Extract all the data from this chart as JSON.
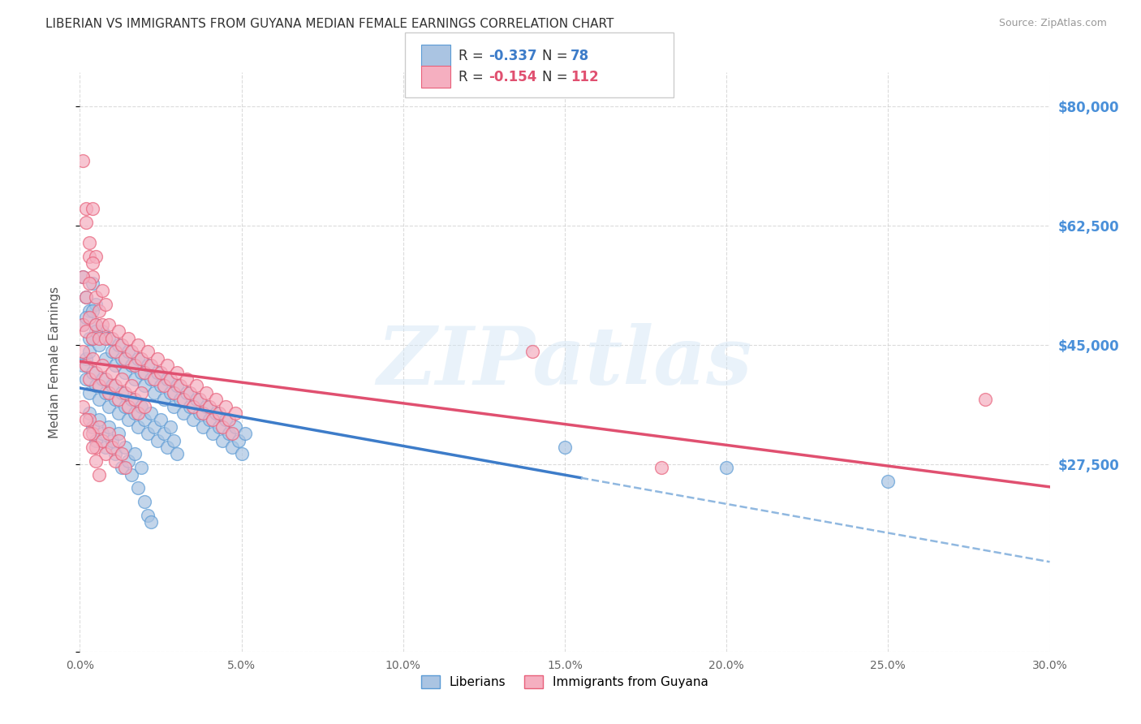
{
  "title": "LIBERIAN VS IMMIGRANTS FROM GUYANA MEDIAN FEMALE EARNINGS CORRELATION CHART",
  "source": "Source: ZipAtlas.com",
  "ylabel": "Median Female Earnings",
  "yticks": [
    0,
    27500,
    45000,
    62500,
    80000
  ],
  "ytick_labels": [
    "",
    "$27,500",
    "$45,000",
    "$62,500",
    "$80,000"
  ],
  "xlim": [
    0.0,
    0.3
  ],
  "ylim": [
    17000,
    85000
  ],
  "watermark": "ZIPatlas",
  "liberian_color": "#aac4e2",
  "guyana_color": "#f5afc0",
  "liberian_edge_color": "#5b9bd5",
  "guyana_edge_color": "#e8607a",
  "liberian_line_color": "#3d7cc9",
  "guyana_line_color": "#e05070",
  "liberian_dashed_color": "#90b8e0",
  "background_color": "#ffffff",
  "grid_color": "#cccccc",
  "title_color": "#333333",
  "axis_label_color": "#555555",
  "right_tick_color": "#4a90d9",
  "liberian_scatter": [
    [
      0.002,
      43000
    ],
    [
      0.003,
      44000
    ],
    [
      0.004,
      46000
    ],
    [
      0.005,
      48000
    ],
    [
      0.006,
      45000
    ],
    [
      0.007,
      47000
    ],
    [
      0.008,
      43000
    ],
    [
      0.009,
      46000
    ],
    [
      0.01,
      44000
    ],
    [
      0.011,
      42000
    ],
    [
      0.012,
      45000
    ],
    [
      0.013,
      43000
    ],
    [
      0.014,
      41000
    ],
    [
      0.015,
      44000
    ],
    [
      0.016,
      42000
    ],
    [
      0.017,
      40000
    ],
    [
      0.018,
      43000
    ],
    [
      0.019,
      41000
    ],
    [
      0.02,
      39000
    ],
    [
      0.021,
      42000
    ],
    [
      0.022,
      40000
    ],
    [
      0.023,
      38000
    ],
    [
      0.024,
      41000
    ],
    [
      0.025,
      39000
    ],
    [
      0.026,
      37000
    ],
    [
      0.027,
      40000
    ],
    [
      0.028,
      38000
    ],
    [
      0.029,
      36000
    ],
    [
      0.03,
      39000
    ],
    [
      0.031,
      37000
    ],
    [
      0.032,
      35000
    ],
    [
      0.033,
      38000
    ],
    [
      0.034,
      36000
    ],
    [
      0.035,
      34000
    ],
    [
      0.036,
      37000
    ],
    [
      0.037,
      35000
    ],
    [
      0.038,
      33000
    ],
    [
      0.039,
      36000
    ],
    [
      0.04,
      34000
    ],
    [
      0.041,
      32000
    ],
    [
      0.042,
      35000
    ],
    [
      0.043,
      33000
    ],
    [
      0.044,
      31000
    ],
    [
      0.045,
      34000
    ],
    [
      0.046,
      32000
    ],
    [
      0.047,
      30000
    ],
    [
      0.048,
      33000
    ],
    [
      0.049,
      31000
    ],
    [
      0.05,
      29000
    ],
    [
      0.051,
      32000
    ],
    [
      0.001,
      55000
    ],
    [
      0.002,
      52000
    ],
    [
      0.003,
      50000
    ],
    [
      0.004,
      54000
    ],
    [
      0.005,
      51000
    ],
    [
      0.001,
      48000
    ],
    [
      0.002,
      49000
    ],
    [
      0.003,
      46000
    ],
    [
      0.004,
      50000
    ],
    [
      0.005,
      47000
    ],
    [
      0.001,
      42000
    ],
    [
      0.002,
      40000
    ],
    [
      0.003,
      38000
    ],
    [
      0.004,
      41000
    ],
    [
      0.005,
      39000
    ],
    [
      0.006,
      37000
    ],
    [
      0.007,
      40000
    ],
    [
      0.008,
      38000
    ],
    [
      0.009,
      36000
    ],
    [
      0.01,
      39000
    ],
    [
      0.011,
      37000
    ],
    [
      0.012,
      35000
    ],
    [
      0.013,
      38000
    ],
    [
      0.014,
      36000
    ],
    [
      0.015,
      34000
    ],
    [
      0.016,
      37000
    ],
    [
      0.017,
      35000
    ],
    [
      0.018,
      33000
    ],
    [
      0.019,
      36000
    ],
    [
      0.02,
      34000
    ],
    [
      0.021,
      32000
    ],
    [
      0.022,
      35000
    ],
    [
      0.023,
      33000
    ],
    [
      0.024,
      31000
    ],
    [
      0.025,
      34000
    ],
    [
      0.026,
      32000
    ],
    [
      0.027,
      30000
    ],
    [
      0.028,
      33000
    ],
    [
      0.029,
      31000
    ],
    [
      0.03,
      29000
    ],
    [
      0.003,
      35000
    ],
    [
      0.004,
      33000
    ],
    [
      0.005,
      31000
    ],
    [
      0.006,
      34000
    ],
    [
      0.007,
      32000
    ],
    [
      0.008,
      30000
    ],
    [
      0.009,
      33000
    ],
    [
      0.01,
      31000
    ],
    [
      0.011,
      29000
    ],
    [
      0.012,
      32000
    ],
    [
      0.013,
      27000
    ],
    [
      0.014,
      30000
    ],
    [
      0.015,
      28000
    ],
    [
      0.016,
      26000
    ],
    [
      0.017,
      29000
    ],
    [
      0.018,
      24000
    ],
    [
      0.019,
      27000
    ],
    [
      0.02,
      22000
    ],
    [
      0.021,
      20000
    ],
    [
      0.022,
      19000
    ],
    [
      0.15,
      30000
    ],
    [
      0.2,
      27000
    ],
    [
      0.25,
      25000
    ]
  ],
  "guyana_scatter": [
    [
      0.001,
      72000
    ],
    [
      0.002,
      65000
    ],
    [
      0.003,
      58000
    ],
    [
      0.004,
      55000
    ],
    [
      0.002,
      63000
    ],
    [
      0.003,
      60000
    ],
    [
      0.004,
      65000
    ],
    [
      0.005,
      58000
    ],
    [
      0.001,
      55000
    ],
    [
      0.002,
      52000
    ],
    [
      0.003,
      54000
    ],
    [
      0.004,
      57000
    ],
    [
      0.005,
      52000
    ],
    [
      0.006,
      50000
    ],
    [
      0.007,
      53000
    ],
    [
      0.008,
      51000
    ],
    [
      0.001,
      48000
    ],
    [
      0.002,
      47000
    ],
    [
      0.003,
      49000
    ],
    [
      0.004,
      46000
    ],
    [
      0.005,
      48000
    ],
    [
      0.006,
      46000
    ],
    [
      0.007,
      48000
    ],
    [
      0.008,
      46000
    ],
    [
      0.009,
      48000
    ],
    [
      0.01,
      46000
    ],
    [
      0.011,
      44000
    ],
    [
      0.012,
      47000
    ],
    [
      0.013,
      45000
    ],
    [
      0.014,
      43000
    ],
    [
      0.015,
      46000
    ],
    [
      0.016,
      44000
    ],
    [
      0.017,
      42000
    ],
    [
      0.018,
      45000
    ],
    [
      0.019,
      43000
    ],
    [
      0.02,
      41000
    ],
    [
      0.021,
      44000
    ],
    [
      0.022,
      42000
    ],
    [
      0.023,
      40000
    ],
    [
      0.024,
      43000
    ],
    [
      0.025,
      41000
    ],
    [
      0.026,
      39000
    ],
    [
      0.027,
      42000
    ],
    [
      0.028,
      40000
    ],
    [
      0.029,
      38000
    ],
    [
      0.03,
      41000
    ],
    [
      0.031,
      39000
    ],
    [
      0.032,
      37000
    ],
    [
      0.033,
      40000
    ],
    [
      0.034,
      38000
    ],
    [
      0.035,
      36000
    ],
    [
      0.036,
      39000
    ],
    [
      0.037,
      37000
    ],
    [
      0.038,
      35000
    ],
    [
      0.039,
      38000
    ],
    [
      0.04,
      36000
    ],
    [
      0.041,
      34000
    ],
    [
      0.042,
      37000
    ],
    [
      0.043,
      35000
    ],
    [
      0.044,
      33000
    ],
    [
      0.045,
      36000
    ],
    [
      0.046,
      34000
    ],
    [
      0.047,
      32000
    ],
    [
      0.048,
      35000
    ],
    [
      0.001,
      44000
    ],
    [
      0.002,
      42000
    ],
    [
      0.003,
      40000
    ],
    [
      0.004,
      43000
    ],
    [
      0.005,
      41000
    ],
    [
      0.006,
      39000
    ],
    [
      0.007,
      42000
    ],
    [
      0.008,
      40000
    ],
    [
      0.009,
      38000
    ],
    [
      0.01,
      41000
    ],
    [
      0.011,
      39000
    ],
    [
      0.012,
      37000
    ],
    [
      0.013,
      40000
    ],
    [
      0.014,
      38000
    ],
    [
      0.015,
      36000
    ],
    [
      0.016,
      39000
    ],
    [
      0.017,
      37000
    ],
    [
      0.018,
      35000
    ],
    [
      0.019,
      38000
    ],
    [
      0.02,
      36000
    ],
    [
      0.003,
      34000
    ],
    [
      0.004,
      32000
    ],
    [
      0.005,
      30000
    ],
    [
      0.006,
      33000
    ],
    [
      0.007,
      31000
    ],
    [
      0.008,
      29000
    ],
    [
      0.009,
      32000
    ],
    [
      0.01,
      30000
    ],
    [
      0.011,
      28000
    ],
    [
      0.012,
      31000
    ],
    [
      0.013,
      29000
    ],
    [
      0.014,
      27000
    ],
    [
      0.001,
      36000
    ],
    [
      0.002,
      34000
    ],
    [
      0.003,
      32000
    ],
    [
      0.004,
      30000
    ],
    [
      0.005,
      28000
    ],
    [
      0.006,
      26000
    ],
    [
      0.14,
      44000
    ],
    [
      0.28,
      37000
    ],
    [
      0.18,
      27000
    ]
  ]
}
